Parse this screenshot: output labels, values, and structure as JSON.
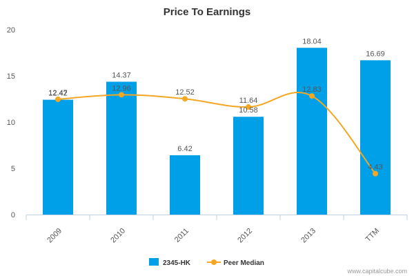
{
  "chart_data": {
    "type": "bar",
    "title": "Price To Earnings",
    "categories": [
      "2009",
      "2010",
      "2011",
      "2012",
      "2013",
      "TTM"
    ],
    "ylim": [
      0,
      20
    ],
    "yticks": [
      0,
      5,
      10,
      15,
      20
    ],
    "grid": false,
    "legend_position": "bottom",
    "series": [
      {
        "name": "2345-HK",
        "type": "bar",
        "color": "#00a0e9",
        "values": [
          12.42,
          14.37,
          6.42,
          10.58,
          18.04,
          16.69
        ],
        "labels": [
          "12.42",
          "14.37",
          "6.42",
          "10.58",
          "18.04",
          "16.69"
        ]
      },
      {
        "name": "Peer Median",
        "type": "line",
        "color": "#f5a623",
        "values": [
          12.47,
          12.96,
          12.52,
          11.64,
          12.83,
          4.43
        ],
        "labels": [
          "12.47",
          "12.96",
          "12.52",
          "11.64",
          "12.83",
          "4.43"
        ]
      }
    ]
  },
  "credit": "www.capitalcube.com"
}
